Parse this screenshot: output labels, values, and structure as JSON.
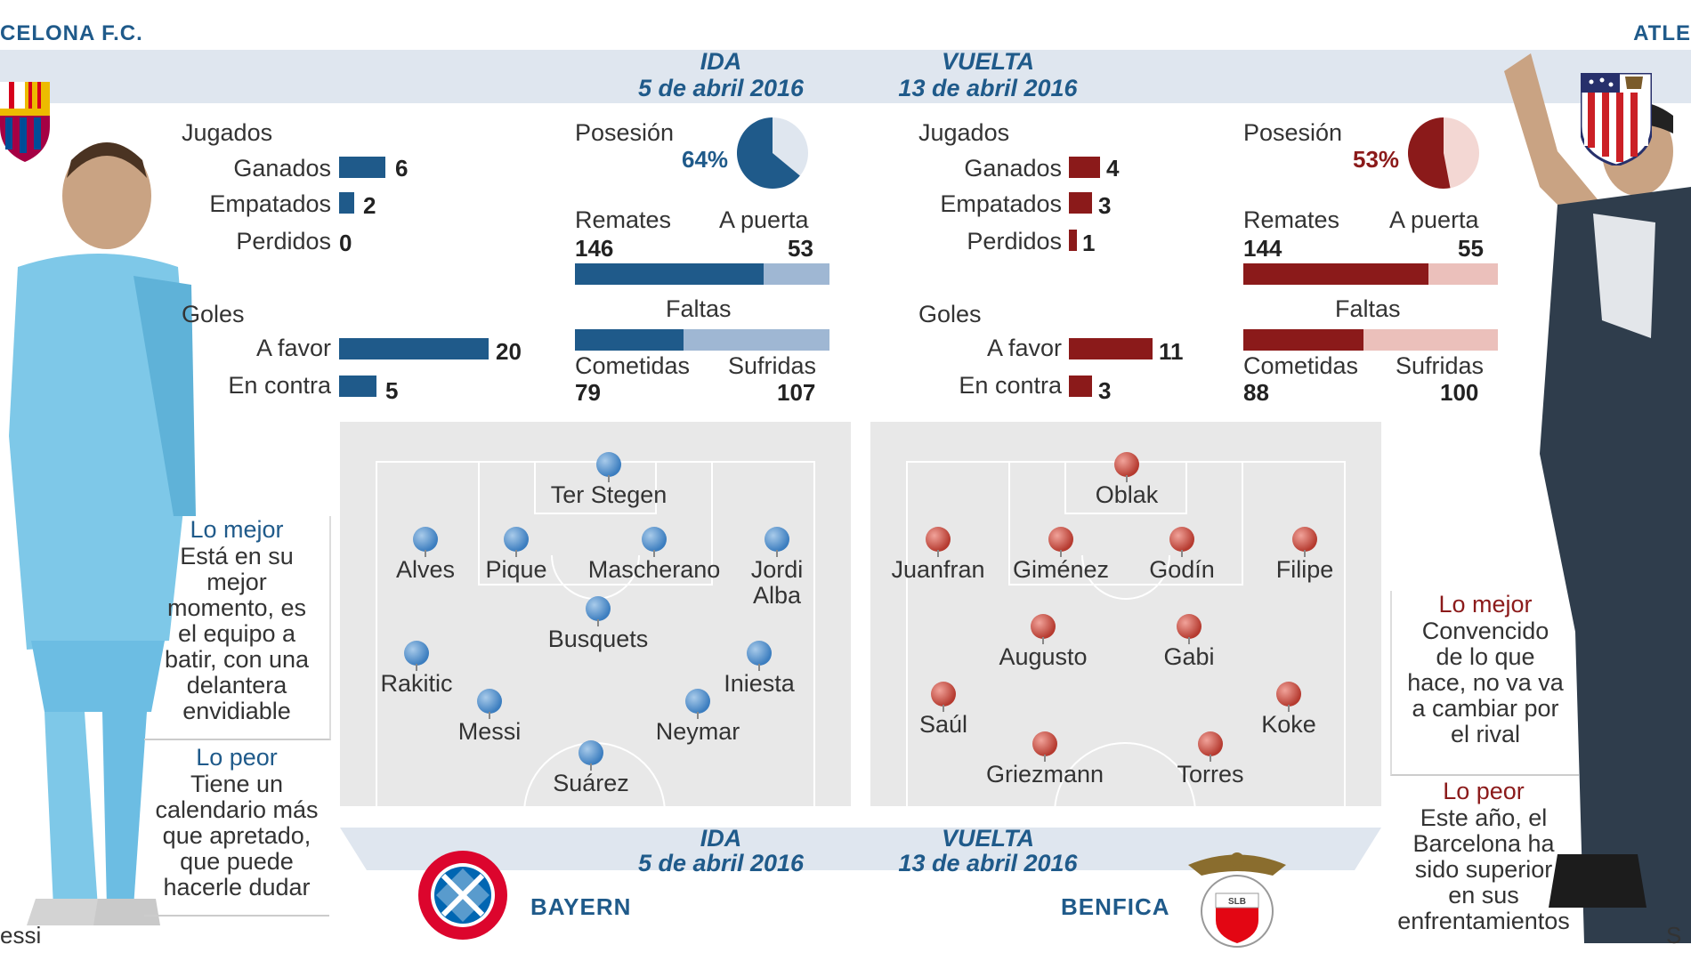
{
  "teams": {
    "left_name": "CELONA F.C.",
    "right_name": "ATLE",
    "left_player_caption": "essi",
    "right_player_caption": "S"
  },
  "top_dates": {
    "ida_label": "IDA",
    "ida_date": "5 de abril 2016",
    "vuelta_label": "VUELTA",
    "vuelta_date": "13 de abril 2016"
  },
  "bottom_dates": {
    "ida_label": "IDA",
    "ida_date": "5 de abril 2016",
    "vuelta_label": "VUELTA",
    "vuelta_date": "13 de abril 2016",
    "team_left": "BAYERN",
    "team_right": "BENFICA"
  },
  "barca": {
    "jugados": "Jugados",
    "ganados_label": "Ganados",
    "ganados": 6,
    "empatados_label": "Empatados",
    "empatados": 2,
    "perdidos_label": "Perdidos",
    "perdidos": 0,
    "goles": "Goles",
    "favor_label": "A favor",
    "favor": 20,
    "contra_label": "En contra",
    "contra": 5,
    "posesion_label": "Posesión",
    "posesion": "64%",
    "posesion_value": 64,
    "remates_label": "Remates",
    "remates": 146,
    "apuerta_label": "A puerta",
    "apuerta": 53,
    "faltas_label": "Faltas",
    "cometidas_label": "Cometidas",
    "cometidas": 79,
    "sufridas_label": "Sufridas",
    "sufridas": 107,
    "lo_mejor_title": "Lo mejor",
    "lo_mejor_text": [
      "Está en su",
      "mejor",
      "momento, es",
      "el equipo a",
      "batir, con una",
      "delantera",
      "envidiable"
    ],
    "lo_peor_title": "Lo peor",
    "lo_peor_text": [
      "Tiene un",
      "calendario más",
      "que apretado,",
      "que puede",
      "hacerle dudar"
    ],
    "players": [
      "Ter Stegen",
      "Alves",
      "Pique",
      "Mascherano",
      "Jordi",
      "Alba",
      "Busquets",
      "Rakitic",
      "Iniesta",
      "Messi",
      "Neymar",
      "Suárez"
    ]
  },
  "atletico": {
    "jugados": "Jugados",
    "ganados_label": "Ganados",
    "ganados": 4,
    "empatados_label": "Empatados",
    "empatados": 3,
    "perdidos_label": "Perdidos",
    "perdidos": 1,
    "goles": "Goles",
    "favor_label": "A favor",
    "favor": 11,
    "contra_label": "En contra",
    "contra": 3,
    "posesion_label": "Posesión",
    "posesion": "53%",
    "posesion_value": 53,
    "remates_label": "Remates",
    "remates": 144,
    "apuerta_label": "A puerta",
    "apuerta": 55,
    "faltas_label": "Faltas",
    "cometidas_label": "Cometidas",
    "cometidas": 88,
    "sufridas_label": "Sufridas",
    "sufridas": 100,
    "lo_mejor_title": "Lo mejor",
    "lo_mejor_text": [
      "Convencido",
      "de lo que",
      "hace, no va va",
      "a cambiar por",
      "el rival"
    ],
    "lo_peor_title": "Lo peor",
    "lo_peor_text": [
      "Este año, el",
      "Barcelona ha",
      "sido superior",
      "en sus",
      "enfrentamientos"
    ],
    "players": [
      "Oblak",
      "Juanfran",
      "Giménez",
      "Godín",
      "Filipe",
      "Augusto",
      "Gabi",
      "Saúl",
      "Koke",
      "Griezmann",
      "Torres"
    ]
  },
  "colors": {
    "barca_blue": "#1f5a8a",
    "atleti_red": "#8b1a1a",
    "band": "#dfe6ef",
    "pitch": "#e8e8e8"
  }
}
